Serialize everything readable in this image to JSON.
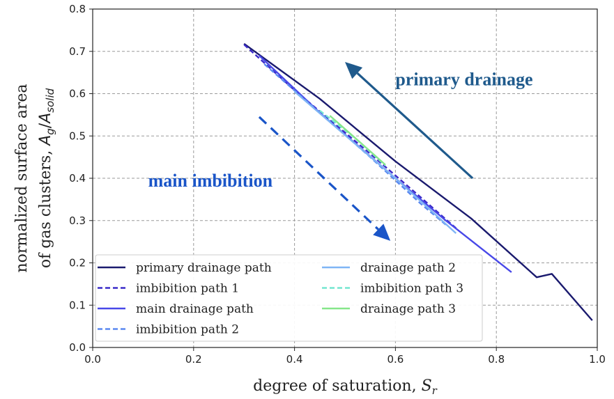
{
  "chart_data": {
    "type": "line",
    "xlabel": "degree of saturation, S_r",
    "xlabel_parts": {
      "text": "degree of saturation,",
      "symbol": "S",
      "sub": "r"
    },
    "ylabel_line1": "normalized surface area",
    "ylabel_line2": {
      "text": "of gas clusters,",
      "symbol": "A",
      "sub": "g",
      "slash": "/",
      "symbol2": "A",
      "sub2": "solid"
    },
    "xlim": [
      0.0,
      1.0
    ],
    "ylim": [
      0.0,
      0.8
    ],
    "xticks": [
      0.0,
      0.2,
      0.4,
      0.6,
      0.8,
      1.0
    ],
    "xtick_labels": [
      "0.0",
      "0.2",
      "0.4",
      "0.6",
      "0.8",
      "1.0"
    ],
    "yticks": [
      0.0,
      0.1,
      0.2,
      0.3,
      0.4,
      0.5,
      0.6,
      0.7,
      0.8
    ],
    "ytick_labels": [
      "0.0",
      "0.1",
      "0.2",
      "0.3",
      "0.4",
      "0.5",
      "0.6",
      "0.7",
      "0.8"
    ],
    "grid": true,
    "legend_position": "bottom-left",
    "series": [
      {
        "name": "primary drainage path",
        "color": "#1a1a6e",
        "dashed": false,
        "x": [
          0.3,
          0.45,
          0.6,
          0.75,
          0.88,
          0.91,
          0.99
        ],
        "y": [
          0.718,
          0.588,
          0.44,
          0.305,
          0.166,
          0.174,
          0.064
        ]
      },
      {
        "name": "imbibition path 1",
        "color": "#3a2bc8",
        "dashed": true,
        "x": [
          0.3,
          0.4,
          0.55,
          0.65,
          0.72
        ],
        "y": [
          0.716,
          0.608,
          0.458,
          0.355,
          0.282
        ]
      },
      {
        "name": "main drainage path",
        "color": "#4848e8",
        "dashed": false,
        "x": [
          0.33,
          0.45,
          0.6,
          0.7,
          0.83
        ],
        "y": [
          0.69,
          0.555,
          0.4,
          0.3,
          0.178
        ]
      },
      {
        "name": "imbibition path 2",
        "color": "#5a88f0",
        "dashed": true,
        "x": [
          0.34,
          0.45,
          0.55,
          0.65,
          0.7
        ],
        "y": [
          0.67,
          0.555,
          0.45,
          0.34,
          0.29
        ]
      },
      {
        "name": "drainage path 2",
        "color": "#7fb5f5",
        "dashed": false,
        "x": [
          0.4,
          0.5,
          0.6,
          0.72
        ],
        "y": [
          0.605,
          0.502,
          0.4,
          0.27
        ]
      },
      {
        "name": "imbibition path 3",
        "color": "#74e6d0",
        "dashed": true,
        "x": [
          0.45,
          0.52,
          0.58
        ],
        "y": [
          0.56,
          0.495,
          0.43
        ]
      },
      {
        "name": "drainage path 3",
        "color": "#86e68a",
        "dashed": false,
        "x": [
          0.47,
          0.53,
          0.58
        ],
        "y": [
          0.548,
          0.485,
          0.432
        ]
      }
    ],
    "annotations": [
      {
        "text": "primary drainage",
        "color": "#1f5a8c",
        "x": 0.6,
        "y": 0.62,
        "arrow": {
          "from": [
            0.753,
            0.4
          ],
          "to": [
            0.5,
            0.675
          ],
          "color": "#1f5a8c",
          "dashed": false
        }
      },
      {
        "text": "main imbibition",
        "color": "#1a55c8",
        "x": 0.11,
        "y": 0.38,
        "arrow": {
          "from": [
            0.33,
            0.545
          ],
          "to": [
            0.59,
            0.252
          ],
          "color": "#1a55c8",
          "dashed": true
        }
      }
    ]
  }
}
